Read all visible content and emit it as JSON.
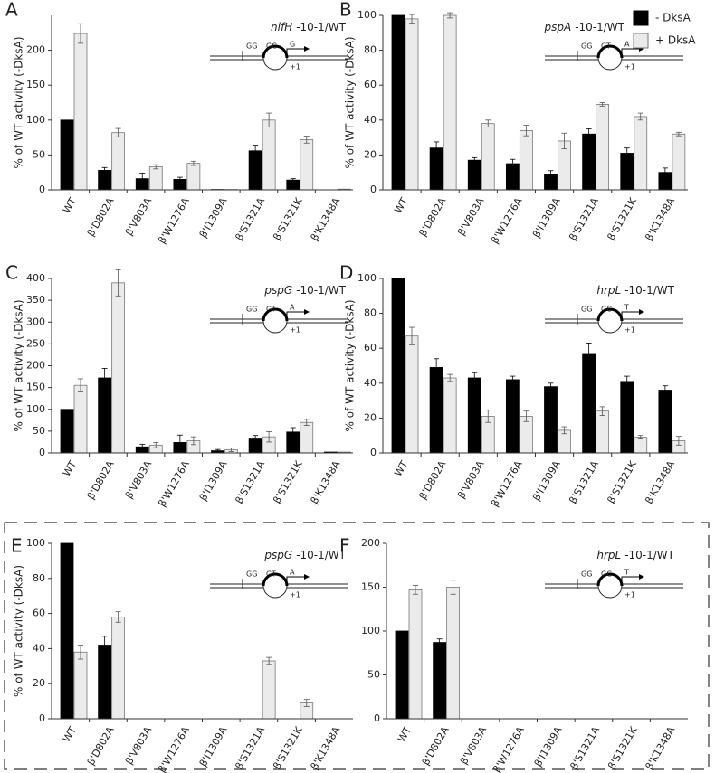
{
  "chart_data": [
    {
      "type": "bar",
      "panel": "A",
      "gene": "nifH",
      "title": "-10-1/WT",
      "y_label": "% of WT activity (-DksA)",
      "categories": [
        "WT",
        "β'D802A",
        "β'V803A",
        "β'W1276A",
        "β'I1309A",
        "β'S1321A",
        "β'S1321K",
        "β'K1348A"
      ],
      "series": [
        {
          "color": "#000000",
          "values": [
            100,
            28,
            16,
            15,
            0.5,
            56,
            14,
            0
          ],
          "errors": [
            0,
            4,
            8,
            3,
            0,
            8,
            2,
            0
          ]
        },
        {
          "color": "#ebebeb",
          "values": [
            224,
            82,
            33,
            38,
            0.5,
            100,
            72,
            1
          ],
          "errors": [
            14,
            6,
            3,
            3,
            0,
            10,
            5,
            0
          ]
        }
      ],
      "ylim": [
        0,
        250
      ],
      "yticks": [
        0,
        50,
        100,
        150,
        200
      ],
      "diagram": [
        "GG",
        "GC",
        "G",
        "+1"
      ]
    },
    {
      "type": "bar",
      "panel": "B",
      "gene": "pspA",
      "title": "-10-1/WT",
      "y_label": "% of WT activity (-DksA)",
      "categories": [
        "WT",
        "β'D802A",
        "β'V803A",
        "β'W1276A",
        "β'I1309A",
        "β'S1321A",
        "β'S1321K",
        "β'K1348A"
      ],
      "series": [
        {
          "name": "- DksA",
          "color": "#000000",
          "values": [
            100,
            24,
            17,
            15,
            9,
            32,
            21,
            10
          ],
          "errors": [
            0,
            3.5,
            1.5,
            2.5,
            2,
            3,
            3,
            2.5
          ]
        },
        {
          "name": "+ DksA",
          "color": "#ebebeb",
          "values": [
            98,
            100,
            38,
            34,
            28,
            49,
            42,
            32
          ],
          "errors": [
            2.5,
            1.5,
            2,
            3,
            4.5,
            1,
            2,
            1
          ]
        }
      ],
      "ylim": [
        0,
        100
      ],
      "yticks": [
        0,
        20,
        40,
        60,
        80,
        100
      ],
      "diagram": [
        "GG",
        "GT",
        "A",
        "+1"
      ]
    },
    {
      "type": "bar",
      "panel": "C",
      "gene": "pspG",
      "title": "-10-1/WT",
      "y_label": "% of WT activity (-DksA)",
      "categories": [
        "WT",
        "β'D802A",
        "β'V803A",
        "β'W1276A",
        "β'I1309A",
        "β'S1321A",
        "β'S1321K",
        "β'K1348A"
      ],
      "series": [
        {
          "color": "#000000",
          "values": [
            100,
            172,
            14,
            24,
            5,
            32,
            48,
            2
          ],
          "errors": [
            0,
            22,
            6,
            17,
            3,
            8,
            10,
            0
          ]
        },
        {
          "color": "#ebebeb",
          "values": [
            155,
            390,
            18,
            28,
            7,
            37,
            70,
            2
          ],
          "errors": [
            15,
            30,
            6,
            9,
            4,
            12,
            7,
            0
          ]
        }
      ],
      "ylim": [
        0,
        400
      ],
      "yticks": [
        0,
        50,
        100,
        150,
        200,
        250,
        300,
        350,
        400
      ],
      "diagram": [
        "GG",
        "GT",
        "A",
        "+1"
      ]
    },
    {
      "type": "bar",
      "panel": "D",
      "gene": "hrpL",
      "title": "-10-1/WT",
      "y_label": "% of WT activity (-DksA)",
      "categories": [
        "WT",
        "β'D802A",
        "β'V803A",
        "β'W1276A",
        "β'I1309A",
        "β'S1321A",
        "β'S1321K",
        "β'K1348A"
      ],
      "series": [
        {
          "color": "#000000",
          "values": [
            100,
            49,
            43,
            42,
            38,
            57,
            41,
            36
          ],
          "errors": [
            0,
            5,
            3,
            2,
            2,
            6,
            3,
            2.5
          ]
        },
        {
          "color": "#ebebeb",
          "values": [
            67,
            43,
            21,
            21,
            13,
            24,
            9,
            7
          ],
          "errors": [
            5,
            2,
            3.5,
            3,
            2,
            2.5,
            1,
            2.5
          ]
        }
      ],
      "ylim": [
        0,
        100
      ],
      "yticks": [
        0,
        20,
        40,
        60,
        80,
        100
      ],
      "diagram": [
        "GG",
        "GC",
        "T",
        "+1"
      ]
    },
    {
      "type": "bar",
      "panel": "E",
      "gene": "pspG",
      "title": "-10-1/WT",
      "y_label": "% of WT activity (-DksA)",
      "categories": [
        "WT",
        "β'D802A",
        "β'V803A",
        "β'W1276A",
        "β'I1309A",
        "β'S1321A",
        "β'S1321K",
        "β'K1348A"
      ],
      "series": [
        {
          "color": "#000000",
          "values": [
            100,
            42,
            null,
            null,
            null,
            null,
            null,
            null
          ],
          "errors": [
            0,
            5,
            null,
            null,
            null,
            null,
            null,
            null
          ]
        },
        {
          "color": "#ebebeb",
          "values": [
            38,
            58,
            null,
            null,
            null,
            33,
            9,
            null
          ],
          "errors": [
            4,
            3,
            null,
            null,
            null,
            2,
            2,
            null
          ]
        }
      ],
      "ylim": [
        0,
        100
      ],
      "yticks": [
        0,
        20,
        40,
        60,
        80,
        100
      ],
      "diagram": [
        "GG",
        "GT",
        "A",
        "+1"
      ]
    },
    {
      "type": "bar",
      "panel": "F",
      "gene": "hrpL",
      "title": "-10-1/WT",
      "categories": [
        "WT",
        "β'D802A",
        "β'V803A",
        "β'W1276A",
        "β'I1309A",
        "β'S1321A",
        "β'S1321K",
        "β'K1348A"
      ],
      "series": [
        {
          "color": "#000000",
          "values": [
            100,
            87,
            null,
            null,
            null,
            null,
            null,
            null
          ],
          "errors": [
            0,
            4,
            null,
            null,
            null,
            null,
            null,
            null
          ]
        },
        {
          "color": "#ebebeb",
          "values": [
            147,
            150,
            null,
            null,
            null,
            null,
            null,
            null
          ],
          "errors": [
            5,
            8,
            null,
            null,
            null,
            null,
            null,
            null
          ]
        }
      ],
      "ylim": [
        0,
        200
      ],
      "yticks": [
        0,
        50,
        100,
        150,
        200
      ],
      "diagram": [
        "GG",
        "GC",
        "T",
        "+1"
      ]
    }
  ]
}
